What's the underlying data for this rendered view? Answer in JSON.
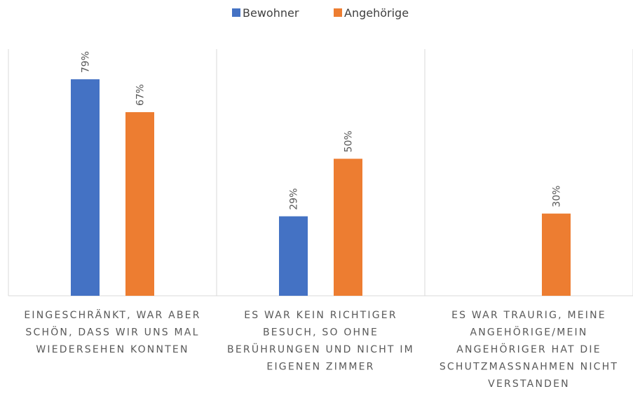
{
  "chart_data": {
    "type": "bar",
    "categories": [
      "EINGESCHRÄNKT, WAR ABER SCHÖN, DASS WIR UNS MAL WIEDERSEHEN KONNTEN",
      "ES WAR KEIN RICHTIGER BESUCH, SO OHNE BERÜHRUNGEN UND NICHT IM EIGENEN ZIMMER",
      "ES WAR TRAURIG, MEINE ANGEHÖRIGE/MEIN ANGEHÖRIGER HAT DIE SCHUTZMASSNAHMEN NICHT VERSTANDEN"
    ],
    "series": [
      {
        "name": "Bewohner",
        "color": "#4472c4",
        "values": [
          79,
          29,
          null
        ],
        "value_labels": [
          "79%",
          "29%",
          null
        ]
      },
      {
        "name": "Angehörige",
        "color": "#ed7d31",
        "values": [
          67,
          50,
          30
        ],
        "value_labels": [
          "67%",
          "50%",
          "30%"
        ]
      }
    ],
    "ylim": [
      0,
      100
    ],
    "legend": "top"
  }
}
